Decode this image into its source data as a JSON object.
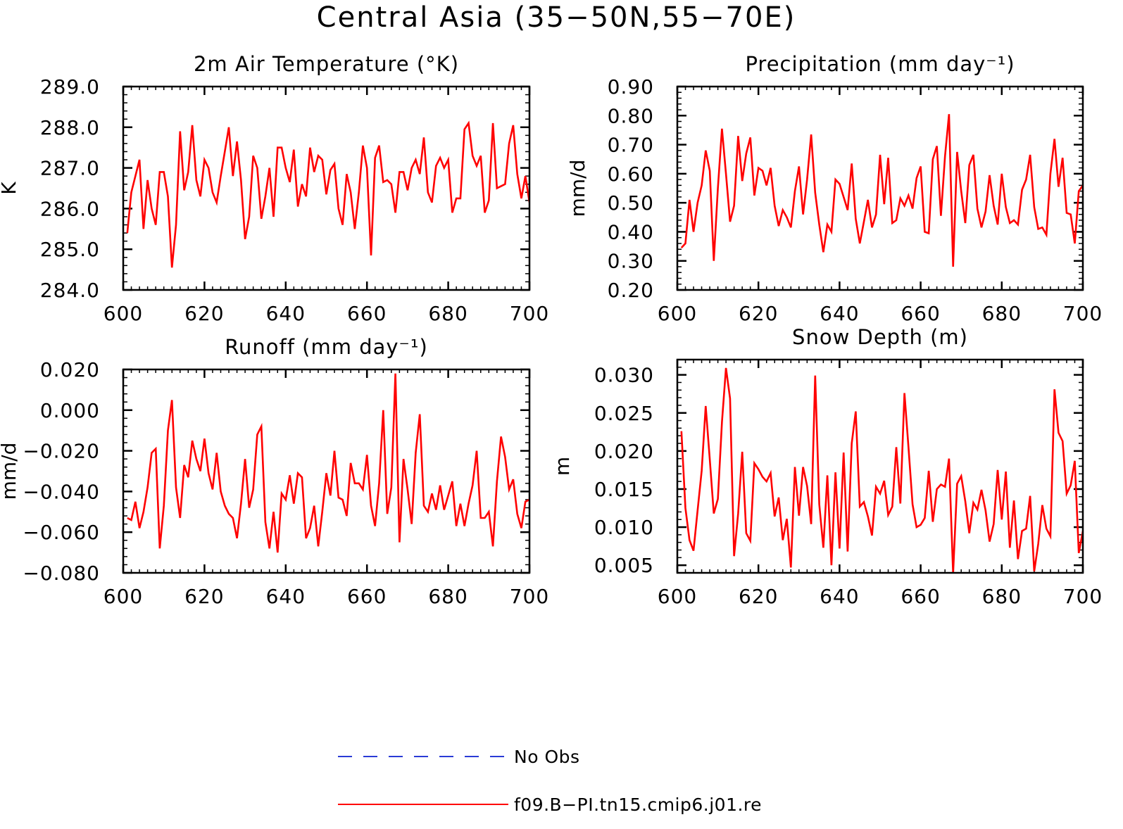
{
  "figure": {
    "title": "Central Asia (35−50N,55−70E)",
    "colors": {
      "model": "#ff0000",
      "obs": "#2a3bd6",
      "axes": "#000000"
    }
  },
  "legend": {
    "items": [
      {
        "label": "No Obs",
        "color": "#2a3bd6",
        "style": "dashed"
      },
      {
        "label": "f09.B−PI.tn15.cmip6.j01.re",
        "color": "#ff0000",
        "style": "solid"
      }
    ]
  },
  "chart_data": [
    {
      "id": "temp",
      "type": "line",
      "title": "2m Air Temperature (°K)",
      "ylabel": "K",
      "xlim": [
        600,
        700
      ],
      "ylim": [
        284.0,
        289.0
      ],
      "xticks": [
        600,
        620,
        640,
        660,
        680,
        700
      ],
      "xtick_labels": [
        "600",
        "620",
        "640",
        "660",
        "680",
        "700"
      ],
      "yticks": [
        284.0,
        285.0,
        286.0,
        287.0,
        288.0,
        289.0
      ],
      "ytick_labels": [
        "284.0",
        "285.0",
        "286.0",
        "287.0",
        "288.0",
        "289.0"
      ],
      "series": [
        {
          "name": "f09.B−PI.tn15.cmip6.j01.re",
          "color": "#ff0000",
          "x_start": 601,
          "x_step": 1,
          "values": [
            285.4,
            286.4,
            286.8,
            287.2,
            285.5,
            286.7,
            286.0,
            285.6,
            286.9,
            286.9,
            286.3,
            284.55,
            285.6,
            287.9,
            286.45,
            286.9,
            288.05,
            286.7,
            286.3,
            287.2,
            287.0,
            286.4,
            286.15,
            286.8,
            287.4,
            288.0,
            286.8,
            287.65,
            286.7,
            285.25,
            285.8,
            287.3,
            287.0,
            285.75,
            286.3,
            287.0,
            285.8,
            287.5,
            287.5,
            287.0,
            286.65,
            287.45,
            286.05,
            286.6,
            286.3,
            287.5,
            286.9,
            287.3,
            287.2,
            286.35,
            286.95,
            287.1,
            286.0,
            285.6,
            286.85,
            286.4,
            285.5,
            286.4,
            287.55,
            287.0,
            284.85,
            287.25,
            287.55,
            286.65,
            286.7,
            286.6,
            285.9,
            286.9,
            286.9,
            286.45,
            287.0,
            287.2,
            286.85,
            287.75,
            286.4,
            286.15,
            287.05,
            287.25,
            287.0,
            287.2,
            285.9,
            286.25,
            286.25,
            287.95,
            288.1,
            287.3,
            287.05,
            287.3,
            285.9,
            286.2,
            288.1,
            286.5,
            286.55,
            286.6,
            287.6,
            288.05,
            286.85,
            286.25,
            286.8,
            286.15
          ]
        }
      ]
    },
    {
      "id": "precip",
      "type": "line",
      "title": "Precipitation (mm day⁻¹)",
      "ylabel": "mm/d",
      "xlim": [
        600,
        700
      ],
      "ylim": [
        0.2,
        0.9
      ],
      "xticks": [
        600,
        620,
        640,
        660,
        680,
        700
      ],
      "xtick_labels": [
        "600",
        "620",
        "640",
        "660",
        "680",
        "700"
      ],
      "yticks": [
        0.2,
        0.3,
        0.4,
        0.5,
        0.6,
        0.7,
        0.8,
        0.9
      ],
      "ytick_labels": [
        "0.20",
        "0.30",
        "0.40",
        "0.50",
        "0.60",
        "0.70",
        "0.80",
        "0.90"
      ],
      "series": [
        {
          "name": "f09.B−PI.tn15.cmip6.j01.re",
          "color": "#ff0000",
          "x_start": 601,
          "x_step": 1,
          "values": [
            0.345,
            0.36,
            0.51,
            0.4,
            0.5,
            0.56,
            0.68,
            0.61,
            0.3,
            0.55,
            0.755,
            0.6,
            0.435,
            0.49,
            0.73,
            0.575,
            0.67,
            0.725,
            0.525,
            0.62,
            0.61,
            0.56,
            0.62,
            0.49,
            0.42,
            0.475,
            0.45,
            0.415,
            0.54,
            0.625,
            0.46,
            0.58,
            0.735,
            0.535,
            0.425,
            0.33,
            0.425,
            0.4,
            0.58,
            0.565,
            0.52,
            0.475,
            0.635,
            0.445,
            0.36,
            0.435,
            0.51,
            0.415,
            0.46,
            0.665,
            0.495,
            0.655,
            0.43,
            0.44,
            0.515,
            0.49,
            0.525,
            0.48,
            0.585,
            0.625,
            0.4,
            0.395,
            0.65,
            0.695,
            0.455,
            0.66,
            0.805,
            0.28,
            0.675,
            0.54,
            0.43,
            0.63,
            0.665,
            0.48,
            0.415,
            0.47,
            0.595,
            0.49,
            0.425,
            0.6,
            0.485,
            0.43,
            0.44,
            0.425,
            0.545,
            0.58,
            0.665,
            0.485,
            0.41,
            0.415,
            0.39,
            0.6,
            0.72,
            0.555,
            0.655,
            0.465,
            0.46,
            0.36,
            0.54,
            0.56
          ]
        }
      ]
    },
    {
      "id": "runoff",
      "type": "line",
      "title": "Runoff (mm day⁻¹)",
      "ylabel": "mm/d",
      "xlim": [
        600,
        700
      ],
      "ylim": [
        -0.08,
        0.02
      ],
      "xticks": [
        600,
        620,
        640,
        660,
        680,
        700
      ],
      "xtick_labels": [
        "600",
        "620",
        "640",
        "660",
        "680",
        "700"
      ],
      "yticks": [
        -0.08,
        -0.06,
        -0.04,
        -0.02,
        0.0,
        0.02
      ],
      "ytick_labels": [
        "−0.080",
        "−0.060",
        "−0.040",
        "−0.020",
        "0.000",
        "0.020"
      ],
      "series": [
        {
          "name": "f09.B−PI.tn15.cmip6.j01.re",
          "color": "#ff0000",
          "x_start": 601,
          "x_step": 1,
          "values": [
            -0.053,
            -0.054,
            -0.045,
            -0.058,
            -0.05,
            -0.038,
            -0.021,
            -0.019,
            -0.068,
            -0.047,
            -0.01,
            0.005,
            -0.038,
            -0.053,
            -0.027,
            -0.033,
            -0.015,
            -0.024,
            -0.03,
            -0.014,
            -0.031,
            -0.039,
            -0.021,
            -0.04,
            -0.047,
            -0.051,
            -0.053,
            -0.063,
            -0.046,
            -0.024,
            -0.048,
            -0.039,
            -0.012,
            -0.008,
            -0.055,
            -0.068,
            -0.05,
            -0.07,
            -0.041,
            -0.044,
            -0.032,
            -0.046,
            -0.031,
            -0.033,
            -0.063,
            -0.058,
            -0.047,
            -0.067,
            -0.05,
            -0.031,
            -0.042,
            -0.02,
            -0.043,
            -0.044,
            -0.052,
            -0.026,
            -0.036,
            -0.036,
            -0.039,
            -0.022,
            -0.047,
            -0.057,
            -0.036,
            0.0,
            -0.051,
            -0.038,
            0.018,
            -0.065,
            -0.024,
            -0.039,
            -0.056,
            -0.021,
            -0.002,
            -0.047,
            -0.05,
            -0.041,
            -0.049,
            -0.037,
            -0.049,
            -0.042,
            -0.035,
            -0.057,
            -0.046,
            -0.057,
            -0.046,
            -0.037,
            -0.02,
            -0.053,
            -0.053,
            -0.05,
            -0.067,
            -0.035,
            -0.013,
            -0.023,
            -0.039,
            -0.034,
            -0.051,
            -0.058,
            -0.045,
            -0.044
          ]
        }
      ]
    },
    {
      "id": "snow",
      "type": "line",
      "title": "Snow Depth (m)",
      "ylabel": "m",
      "xlim": [
        600,
        700
      ],
      "ylim": [
        0.004,
        0.032
      ],
      "xticks": [
        600,
        620,
        640,
        660,
        680,
        700
      ],
      "xtick_labels": [
        "600",
        "620",
        "640",
        "660",
        "680",
        "700"
      ],
      "yticks": [
        0.005,
        0.01,
        0.015,
        0.02,
        0.025,
        0.03
      ],
      "ytick_labels": [
        "0.005",
        "0.010",
        "0.015",
        "0.020",
        "0.025",
        "0.030"
      ],
      "series": [
        {
          "name": "f09.B−PI.tn15.cmip6.j01.re",
          "color": "#ff0000",
          "x_start": 601,
          "x_step": 1,
          "values": [
            0.0226,
            0.0125,
            0.0083,
            0.0069,
            0.0122,
            0.0174,
            0.0259,
            0.0189,
            0.0118,
            0.0137,
            0.0238,
            0.0309,
            0.0269,
            0.0062,
            0.0118,
            0.0199,
            0.0092,
            0.0082,
            0.0184,
            0.0176,
            0.0166,
            0.016,
            0.0171,
            0.0114,
            0.0139,
            0.0083,
            0.0111,
            0.0047,
            0.0179,
            0.0115,
            0.0179,
            0.0154,
            0.0104,
            0.0299,
            0.013,
            0.0073,
            0.0168,
            0.005,
            0.0172,
            0.0072,
            0.0198,
            0.0068,
            0.021,
            0.0252,
            0.0127,
            0.0133,
            0.0114,
            0.0089,
            0.0153,
            0.0144,
            0.0161,
            0.0116,
            0.0127,
            0.0205,
            0.0131,
            0.0276,
            0.0205,
            0.013,
            0.01,
            0.0103,
            0.0112,
            0.0174,
            0.0107,
            0.015,
            0.0156,
            0.0153,
            0.019,
            0.0039,
            0.0157,
            0.0167,
            0.0134,
            0.0092,
            0.0132,
            0.0123,
            0.0149,
            0.0122,
            0.0081,
            0.0104,
            0.0175,
            0.011,
            0.0173,
            0.0073,
            0.0135,
            0.0058,
            0.0095,
            0.0098,
            0.0141,
            0.0042,
            0.0078,
            0.0129,
            0.0098,
            0.0088,
            0.0281,
            0.0224,
            0.0213,
            0.0144,
            0.0155,
            0.0187,
            0.0066,
            0.0095
          ]
        }
      ]
    }
  ]
}
